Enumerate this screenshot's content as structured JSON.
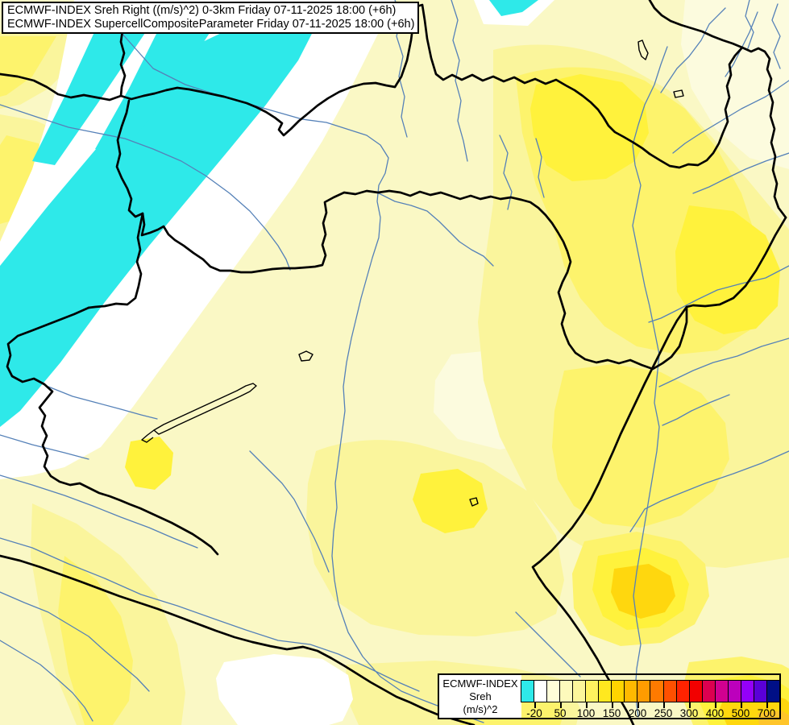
{
  "title_box": {
    "line1": "ECMWF-INDEX Sreh Right ((m/s)^2) 0-3km Friday 07-11-2025 18:00 (+6h)",
    "line2": "ECMWF-INDEX SupercellCompositeParameter Friday 07-11-2025 18:00 (+6h)"
  },
  "legend": {
    "title_line1": "ECMWF-INDEX",
    "title_line2": "Sreh",
    "title_line3": "(m/s)^2",
    "tick_labels": [
      "-20",
      "50",
      "100",
      "150",
      "200",
      "250",
      "300",
      "400",
      "500",
      "700"
    ],
    "cell_colors": [
      "#2EE9E9",
      "#FFFFFF",
      "#FFFED9",
      "#FDFABC",
      "#FCF69B",
      "#FFF25F",
      "#FFE81F",
      "#FFD400",
      "#FFB900",
      "#FF9C00",
      "#FF7A00",
      "#FF5000",
      "#FF2300",
      "#F20000",
      "#DC0050",
      "#D10090",
      "#BC00BC",
      "#9400F8",
      "#5A00D8",
      "#000F86"
    ]
  },
  "colors": {
    "base": "#FAF8C5",
    "light_cream": "#FCFBDE",
    "yellow1": "#FAF59C",
    "yellow2": "#FDF36C",
    "yellow3": "#FFF23C",
    "gold": "#FFD70E",
    "amber": "#FFC52B",
    "cyan": "#2EE9E9",
    "white": "#FFFFFF",
    "border": "#000000",
    "river": "#5581B8"
  }
}
